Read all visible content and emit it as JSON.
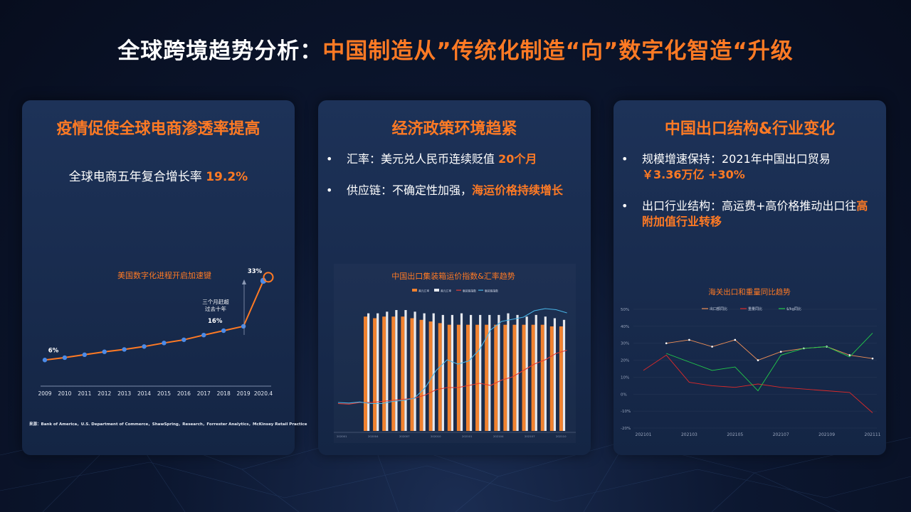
{
  "title": {
    "prefix": "全球跨境趋势分析：",
    "highlight": "中国制造从”传统化制造“向”数字化智造“升级"
  },
  "panels": [
    {
      "title": "疫情促使全球电商渗透率提高",
      "lead_text": "全球电商五年复合增长率",
      "lead_value": "19.2%",
      "source": "来源：Bank of America，U.S. Department of Commerce，ShawSpring，Research，Forrester Analytics，McKinsey Retail Practice"
    },
    {
      "title": "经济政策环境趋紧",
      "bullets": [
        {
          "text": "汇率：美元兑人民币连续贬值",
          "highlight": "20个月"
        },
        {
          "text": "供应链：不确定性加强，",
          "highlight": "海运价格持续增长"
        }
      ]
    },
    {
      "title": "中国出口结构&行业变化",
      "bullets": [
        {
          "text": "规模增速保持：2021年中国出口贸易",
          "highlight": "￥3.36万亿  +30%"
        },
        {
          "text": "出口行业结构：高运费+高价格推动出口往",
          "highlight": "高附加值行业转移"
        }
      ]
    }
  ],
  "bullet_symbol": "•",
  "colors": {
    "accent": "#ff7a24",
    "text": "#ffffff",
    "panel": "#18294a"
  },
  "chart_data": [
    {
      "type": "line",
      "title": "美国数字化进程开启加速键",
      "categories": [
        "2009",
        "2010",
        "2011",
        "2012",
        "2013",
        "2014",
        "2015",
        "2016",
        "2017",
        "2018",
        "2019",
        "2020.4"
      ],
      "values": [
        6,
        6.8,
        7.8,
        8.8,
        9.6,
        10.6,
        11.8,
        12.9,
        14.5,
        16,
        17.5,
        33
      ],
      "data_labels": [
        {
          "index": 0,
          "text": "6%"
        },
        {
          "index": 9,
          "text": "16%"
        },
        {
          "index": 11,
          "text": "33%"
        }
      ],
      "annotation": "三个月赶超过去十年",
      "ylim": [
        0,
        40
      ]
    },
    {
      "type": "bar",
      "title": "中国出口集装箱运价指数&汇率趋势",
      "legend": [
        "美元汇率",
        "美元汇率",
        "集装箱指数",
        "集装箱指数"
      ],
      "x_tick_labels": [
        "202001",
        "202004",
        "202007",
        "202010",
        "202101",
        "202104",
        "202107",
        "202110"
      ],
      "series": [
        {
          "name": "美元汇率",
          "kind": "bar",
          "color": "#f08230",
          "values": [
            7.0,
            6.9,
            7.0,
            7.0,
            7.0,
            6.9,
            6.8,
            6.7,
            6.6,
            6.5,
            6.5,
            6.5,
            6.5,
            6.5,
            6.5,
            6.5,
            6.5,
            6.5,
            6.5,
            6.5,
            6.4,
            6.4
          ]
        },
        {
          "name": "美元汇率",
          "kind": "bar",
          "color": "#e6e9ef",
          "values": [
            7.2,
            7.2,
            7.3,
            7.4,
            7.4,
            7.3,
            7.2,
            7.2,
            7.1,
            7.1,
            7.2,
            7.1,
            7.1,
            7.1,
            7.1,
            7.2,
            7.1,
            7.0,
            7.1,
            7.0,
            6.9,
            6.8
          ]
        },
        {
          "name": "集装箱指数",
          "kind": "line",
          "color": "#e83a30",
          "values": [
            0.5,
            0.45,
            0.6,
            0.6,
            0.7,
            0.8,
            0.9,
            1.0,
            1.3,
            1.8,
            2.0,
            2.0,
            2.2,
            2.4,
            2.2,
            2.7,
            3.0,
            3.6,
            4.2,
            4.6,
            5.2,
            5.5
          ]
        },
        {
          "name": "集装箱指数",
          "kind": "line",
          "color": "#48b4e6",
          "values": [
            0.6,
            0.55,
            0.65,
            0.5,
            0.5,
            0.7,
            0.8,
            1.0,
            2.0,
            3.6,
            4.6,
            4.2,
            4.5,
            5.6,
            7.4,
            8.2,
            8.4,
            8.6,
            9.2,
            9.4,
            9.3,
            9.0
          ]
        }
      ]
    },
    {
      "type": "line",
      "title": "海关出口和重量同比趋势",
      "legend": [
        "出口额同比",
        "重量同比",
        "$/kg同比"
      ],
      "x_tick_labels": [
        "202101",
        "202103",
        "202105",
        "202107",
        "202109",
        "202111"
      ],
      "y_tick_labels": [
        "50%",
        "40%",
        "30%",
        "20%",
        "10%",
        "0%",
        "-10%",
        "-20%"
      ],
      "ylim": [
        -20,
        50
      ],
      "series": [
        {
          "name": "出口额同比",
          "color": "#ef8f56",
          "values": [
            null,
            30,
            32,
            28,
            32,
            20,
            25,
            27,
            28,
            23,
            21
          ]
        },
        {
          "name": "重量同比",
          "color": "#dc2a2a",
          "values": [
            14,
            23,
            7,
            5,
            4,
            6,
            4,
            3,
            2,
            1,
            -11
          ]
        },
        {
          "name": "$/kg同比",
          "color": "#22cc4a",
          "values": [
            null,
            24,
            19,
            14,
            16,
            2,
            23,
            27,
            28,
            22,
            36
          ]
        }
      ]
    }
  ]
}
